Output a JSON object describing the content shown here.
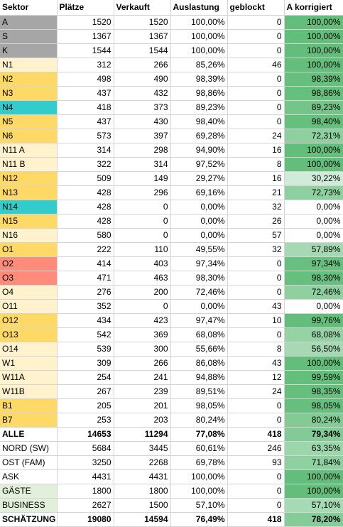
{
  "headers": [
    "Sektor",
    "Plätze",
    "Verkauft",
    "Auslastung",
    "geblockt",
    "A korrigiert"
  ],
  "colors": {
    "gray": "#a6a6a6",
    "orange": "#ffd966",
    "cream": "#fff2cc",
    "teal": "#33cccc",
    "salmon": "#ff8c7a",
    "green_light": "#e2efda",
    "green_dark": "#63be7b",
    "green_white": "#ffffff"
  },
  "rows": [
    {
      "sektor": "A",
      "plaetze": "1520",
      "verkauft": "1520",
      "auslastung": "100,00%",
      "geblockt": "0",
      "korrigiert": "100,00%",
      "bg": "gray",
      "kval": 1.0,
      "bold": false
    },
    {
      "sektor": "S",
      "plaetze": "1367",
      "verkauft": "1367",
      "auslastung": "100,00%",
      "geblockt": "0",
      "korrigiert": "100,00%",
      "bg": "gray",
      "kval": 1.0,
      "bold": false
    },
    {
      "sektor": "K",
      "plaetze": "1544",
      "verkauft": "1544",
      "auslastung": "100,00%",
      "geblockt": "0",
      "korrigiert": "100,00%",
      "bg": "gray",
      "kval": 1.0,
      "bold": false
    },
    {
      "sektor": "N1",
      "plaetze": "312",
      "verkauft": "266",
      "auslastung": "85,26%",
      "geblockt": "46",
      "korrigiert": "100,00%",
      "bg": "cream",
      "kval": 1.0,
      "bold": false
    },
    {
      "sektor": "N2",
      "plaetze": "498",
      "verkauft": "490",
      "auslastung": "98,39%",
      "geblockt": "0",
      "korrigiert": "98,39%",
      "bg": "orange",
      "kval": 0.9839,
      "bold": false
    },
    {
      "sektor": "N3",
      "plaetze": "437",
      "verkauft": "432",
      "auslastung": "98,86%",
      "geblockt": "0",
      "korrigiert": "98,86%",
      "bg": "orange",
      "kval": 0.9886,
      "bold": false
    },
    {
      "sektor": "N4",
      "plaetze": "418",
      "verkauft": "373",
      "auslastung": "89,23%",
      "geblockt": "0",
      "korrigiert": "89,23%",
      "bg": "teal",
      "kval": 0.8923,
      "bold": false
    },
    {
      "sektor": "N5",
      "plaetze": "437",
      "verkauft": "430",
      "auslastung": "98,40%",
      "geblockt": "0",
      "korrigiert": "98,40%",
      "bg": "orange",
      "kval": 0.984,
      "bold": false
    },
    {
      "sektor": "N6",
      "plaetze": "573",
      "verkauft": "397",
      "auslastung": "69,28%",
      "geblockt": "24",
      "korrigiert": "72,31%",
      "bg": "orange",
      "kval": 0.7231,
      "bold": false
    },
    {
      "sektor": "N11 A",
      "plaetze": "314",
      "verkauft": "298",
      "auslastung": "94,90%",
      "geblockt": "16",
      "korrigiert": "100,00%",
      "bg": "cream",
      "kval": 1.0,
      "bold": false
    },
    {
      "sektor": "N11 B",
      "plaetze": "322",
      "verkauft": "314",
      "auslastung": "97,52%",
      "geblockt": "8",
      "korrigiert": "100,00%",
      "bg": "cream",
      "kval": 1.0,
      "bold": false
    },
    {
      "sektor": "N12",
      "plaetze": "509",
      "verkauft": "149",
      "auslastung": "29,27%",
      "geblockt": "16",
      "korrigiert": "30,22%",
      "bg": "orange",
      "kval": 0.3022,
      "bold": false
    },
    {
      "sektor": "N13",
      "plaetze": "428",
      "verkauft": "296",
      "auslastung": "69,16%",
      "geblockt": "21",
      "korrigiert": "72,73%",
      "bg": "orange",
      "kval": 0.7273,
      "bold": false
    },
    {
      "sektor": "N14",
      "plaetze": "428",
      "verkauft": "0",
      "auslastung": "0,00%",
      "geblockt": "32",
      "korrigiert": "0,00%",
      "bg": "teal",
      "kval": 0.0,
      "bold": false
    },
    {
      "sektor": "N15",
      "plaetze": "428",
      "verkauft": "0",
      "auslastung": "0,00%",
      "geblockt": "26",
      "korrigiert": "0,00%",
      "bg": "orange",
      "kval": 0.0,
      "bold": false
    },
    {
      "sektor": "N16",
      "plaetze": "580",
      "verkauft": "0",
      "auslastung": "0,00%",
      "geblockt": "57",
      "korrigiert": "0,00%",
      "bg": "cream",
      "kval": 0.0,
      "bold": false
    },
    {
      "sektor": "O1",
      "plaetze": "222",
      "verkauft": "110",
      "auslastung": "49,55%",
      "geblockt": "32",
      "korrigiert": "57,89%",
      "bg": "orange",
      "kval": 0.5789,
      "bold": false
    },
    {
      "sektor": "O2",
      "plaetze": "414",
      "verkauft": "403",
      "auslastung": "97,34%",
      "geblockt": "0",
      "korrigiert": "97,34%",
      "bg": "salmon",
      "kval": 0.9734,
      "bold": false
    },
    {
      "sektor": "O3",
      "plaetze": "471",
      "verkauft": "463",
      "auslastung": "98,30%",
      "geblockt": "0",
      "korrigiert": "98,30%",
      "bg": "salmon",
      "kval": 0.983,
      "bold": false
    },
    {
      "sektor": "O4",
      "plaetze": "276",
      "verkauft": "200",
      "auslastung": "72,46%",
      "geblockt": "0",
      "korrigiert": "72,46%",
      "bg": "cream",
      "kval": 0.7246,
      "bold": false
    },
    {
      "sektor": "O11",
      "plaetze": "352",
      "verkauft": "0",
      "auslastung": "0,00%",
      "geblockt": "43",
      "korrigiert": "0,00%",
      "bg": "cream",
      "kval": 0.0,
      "bold": false
    },
    {
      "sektor": "O12",
      "plaetze": "434",
      "verkauft": "423",
      "auslastung": "97,47%",
      "geblockt": "10",
      "korrigiert": "99,76%",
      "bg": "orange",
      "kval": 0.9976,
      "bold": false
    },
    {
      "sektor": "O13",
      "plaetze": "542",
      "verkauft": "369",
      "auslastung": "68,08%",
      "geblockt": "0",
      "korrigiert": "68,08%",
      "bg": "orange",
      "kval": 0.6808,
      "bold": false
    },
    {
      "sektor": "O14",
      "plaetze": "539",
      "verkauft": "300",
      "auslastung": "55,66%",
      "geblockt": "8",
      "korrigiert": "56,50%",
      "bg": "cream",
      "kval": 0.565,
      "bold": false
    },
    {
      "sektor": "W1",
      "plaetze": "309",
      "verkauft": "266",
      "auslastung": "86,08%",
      "geblockt": "43",
      "korrigiert": "100,00%",
      "bg": "cream",
      "kval": 1.0,
      "bold": false
    },
    {
      "sektor": "W11A",
      "plaetze": "254",
      "verkauft": "241",
      "auslastung": "94,88%",
      "geblockt": "12",
      "korrigiert": "99,59%",
      "bg": "cream",
      "kval": 0.9959,
      "bold": false
    },
    {
      "sektor": "W11B",
      "plaetze": "267",
      "verkauft": "239",
      "auslastung": "89,51%",
      "geblockt": "24",
      "korrigiert": "98,35%",
      "bg": "cream",
      "kval": 0.9835,
      "bold": false
    },
    {
      "sektor": "B1",
      "plaetze": "205",
      "verkauft": "201",
      "auslastung": "98,05%",
      "geblockt": "0",
      "korrigiert": "98,05%",
      "bg": "orange",
      "kval": 0.9805,
      "bold": false
    },
    {
      "sektor": "B7",
      "plaetze": "253",
      "verkauft": "203",
      "auslastung": "80,24%",
      "geblockt": "0",
      "korrigiert": "80,24%",
      "bg": "orange",
      "kval": 0.8024,
      "bold": false
    },
    {
      "sektor": "ALLE",
      "plaetze": "14653",
      "verkauft": "11294",
      "auslastung": "77,08%",
      "geblockt": "418",
      "korrigiert": "79,34%",
      "bg": "",
      "kval": 0.7934,
      "bold": true
    },
    {
      "sektor": "NORD (SW)",
      "plaetze": "5684",
      "verkauft": "3445",
      "auslastung": "60,61%",
      "geblockt": "246",
      "korrigiert": "63,35%",
      "bg": "",
      "kval": 0.6335,
      "bold": false
    },
    {
      "sektor": "OST (FAM)",
      "plaetze": "3250",
      "verkauft": "2268",
      "auslastung": "69,78%",
      "geblockt": "93",
      "korrigiert": "71,84%",
      "bg": "",
      "kval": 0.7184,
      "bold": false
    },
    {
      "sektor": "ASK",
      "plaetze": "4431",
      "verkauft": "4431",
      "auslastung": "100,00%",
      "geblockt": "0",
      "korrigiert": "100,00%",
      "bg": "",
      "kval": 1.0,
      "bold": false
    },
    {
      "sektor": "GÄSTE",
      "plaetze": "1800",
      "verkauft": "1800",
      "auslastung": "100,00%",
      "geblockt": "0",
      "korrigiert": "100,00%",
      "bg": "green_light",
      "kval": 1.0,
      "bold": false
    },
    {
      "sektor": "BUSINESS",
      "plaetze": "2627",
      "verkauft": "1500",
      "auslastung": "57,10%",
      "geblockt": "0",
      "korrigiert": "57,10%",
      "bg": "green_light",
      "kval": 0.571,
      "bold": false
    },
    {
      "sektor": "SCHÄTZUNG",
      "plaetze": "19080",
      "verkauft": "14594",
      "auslastung": "76,49%",
      "geblockt": "418",
      "korrigiert": "78,20%",
      "bg": "",
      "kval": 0.782,
      "bold": true
    }
  ]
}
